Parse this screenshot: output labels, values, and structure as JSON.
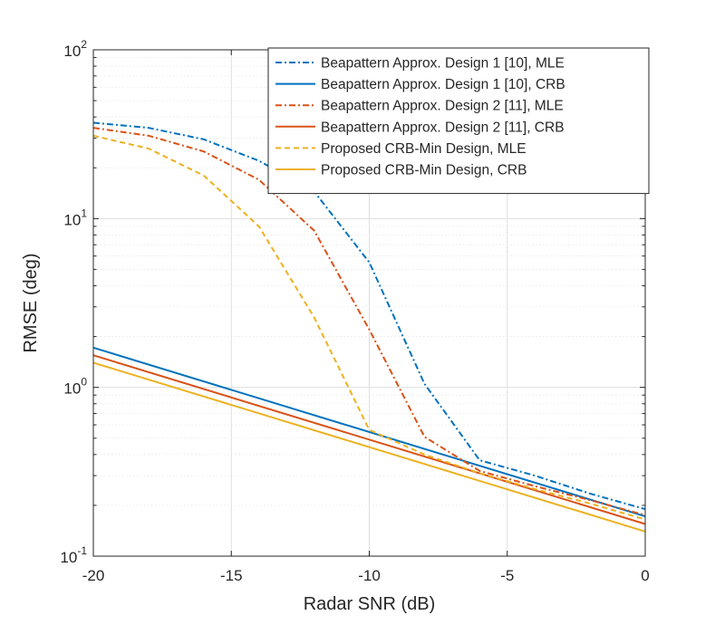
{
  "chart_data": {
    "type": "line",
    "title": "",
    "xlabel": "Radar SNR (dB)",
    "ylabel": "RMSE (deg)",
    "xlim": [
      -20,
      0
    ],
    "ylim": [
      0.1,
      100
    ],
    "yscale": "log",
    "grid": true,
    "legend_position": "top-right",
    "xticks": [
      {
        "value": -20,
        "label": "-20"
      },
      {
        "value": -15,
        "label": "-15"
      },
      {
        "value": -10,
        "label": "-10"
      },
      {
        "value": -5,
        "label": "-5"
      },
      {
        "value": 0,
        "label": "0"
      }
    ],
    "yticks": [
      {
        "value": 0.1,
        "base": "10",
        "exp": "-1"
      },
      {
        "value": 1,
        "base": "10",
        "exp": "0"
      },
      {
        "value": 10,
        "base": "10",
        "exp": "1"
      },
      {
        "value": 100,
        "base": "10",
        "exp": "2"
      }
    ],
    "series": [
      {
        "name": "Beapattern Approx. Design 1 [10], MLE",
        "color": "#0072BD",
        "style": "dashdot",
        "x": [
          -20,
          -18,
          -16,
          -14,
          -12,
          -10,
          -8,
          -6,
          -4,
          -2,
          0
        ],
        "y": [
          37,
          34.5,
          29.5,
          22,
          14.5,
          5.5,
          1.05,
          0.37,
          0.3,
          0.235,
          0.19
        ]
      },
      {
        "name": "Beapattern Approx. Design 1 [10], CRB",
        "color": "#0072BD",
        "style": "solid",
        "x": [
          -20,
          0
        ],
        "y": [
          1.72,
          0.172
        ]
      },
      {
        "name": "Beapattern Approx. Design 2 [11], MLE",
        "color": "#D95319",
        "style": "dashdot",
        "x": [
          -20,
          -18,
          -16,
          -14,
          -12,
          -10,
          -8,
          -6,
          -4,
          -2,
          0
        ],
        "y": [
          34.5,
          31,
          25,
          17,
          8.5,
          2.2,
          0.51,
          0.32,
          0.26,
          0.215,
          0.175
        ]
      },
      {
        "name": "Beapattern Approx. Design 2 [11], CRB",
        "color": "#D95319",
        "style": "solid",
        "x": [
          -20,
          0
        ],
        "y": [
          1.55,
          0.155
        ]
      },
      {
        "name": "Proposed CRB-Min Design, MLE",
        "color": "#EDB120",
        "style": "dashed",
        "x": [
          -20,
          -18,
          -16,
          -14,
          -12,
          -10,
          -8,
          -6,
          -4,
          -2,
          0
        ],
        "y": [
          31,
          26,
          18,
          9,
          2.6,
          0.56,
          0.4,
          0.31,
          0.25,
          0.205,
          0.165
        ]
      },
      {
        "name": "Proposed CRB-Min Design, CRB",
        "color": "#EDB120",
        "style": "solid",
        "x": [
          -20,
          0
        ],
        "y": [
          1.4,
          0.14
        ]
      }
    ]
  }
}
